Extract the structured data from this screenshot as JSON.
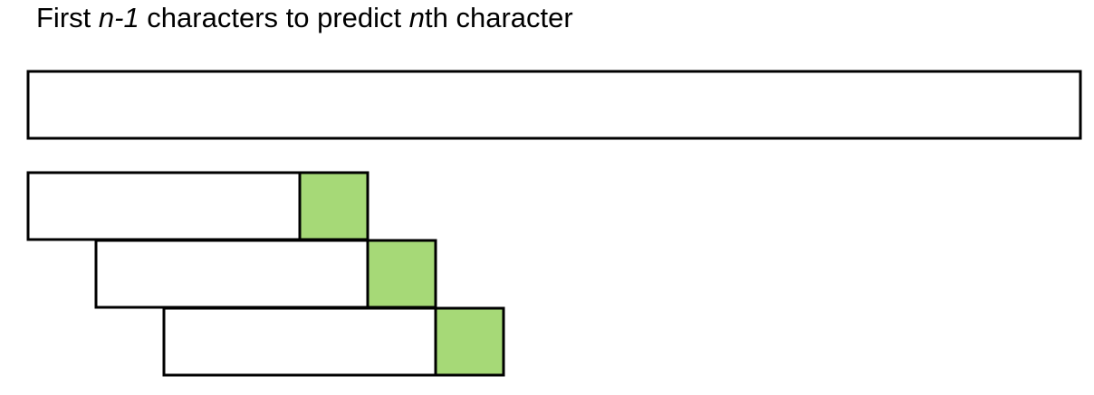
{
  "title": {
    "part1": "First ",
    "n_minus_1": "n-1",
    "part2": " characters to predict ",
    "n": "n",
    "part3": "th character"
  },
  "colors": {
    "target_fill": "#a6d977",
    "stroke": "#000000",
    "window_fill": "#ffffff"
  },
  "windows": [
    {
      "context": "",
      "target": ""
    },
    {
      "context": "",
      "target": ""
    },
    {
      "context": "",
      "target": ""
    }
  ]
}
